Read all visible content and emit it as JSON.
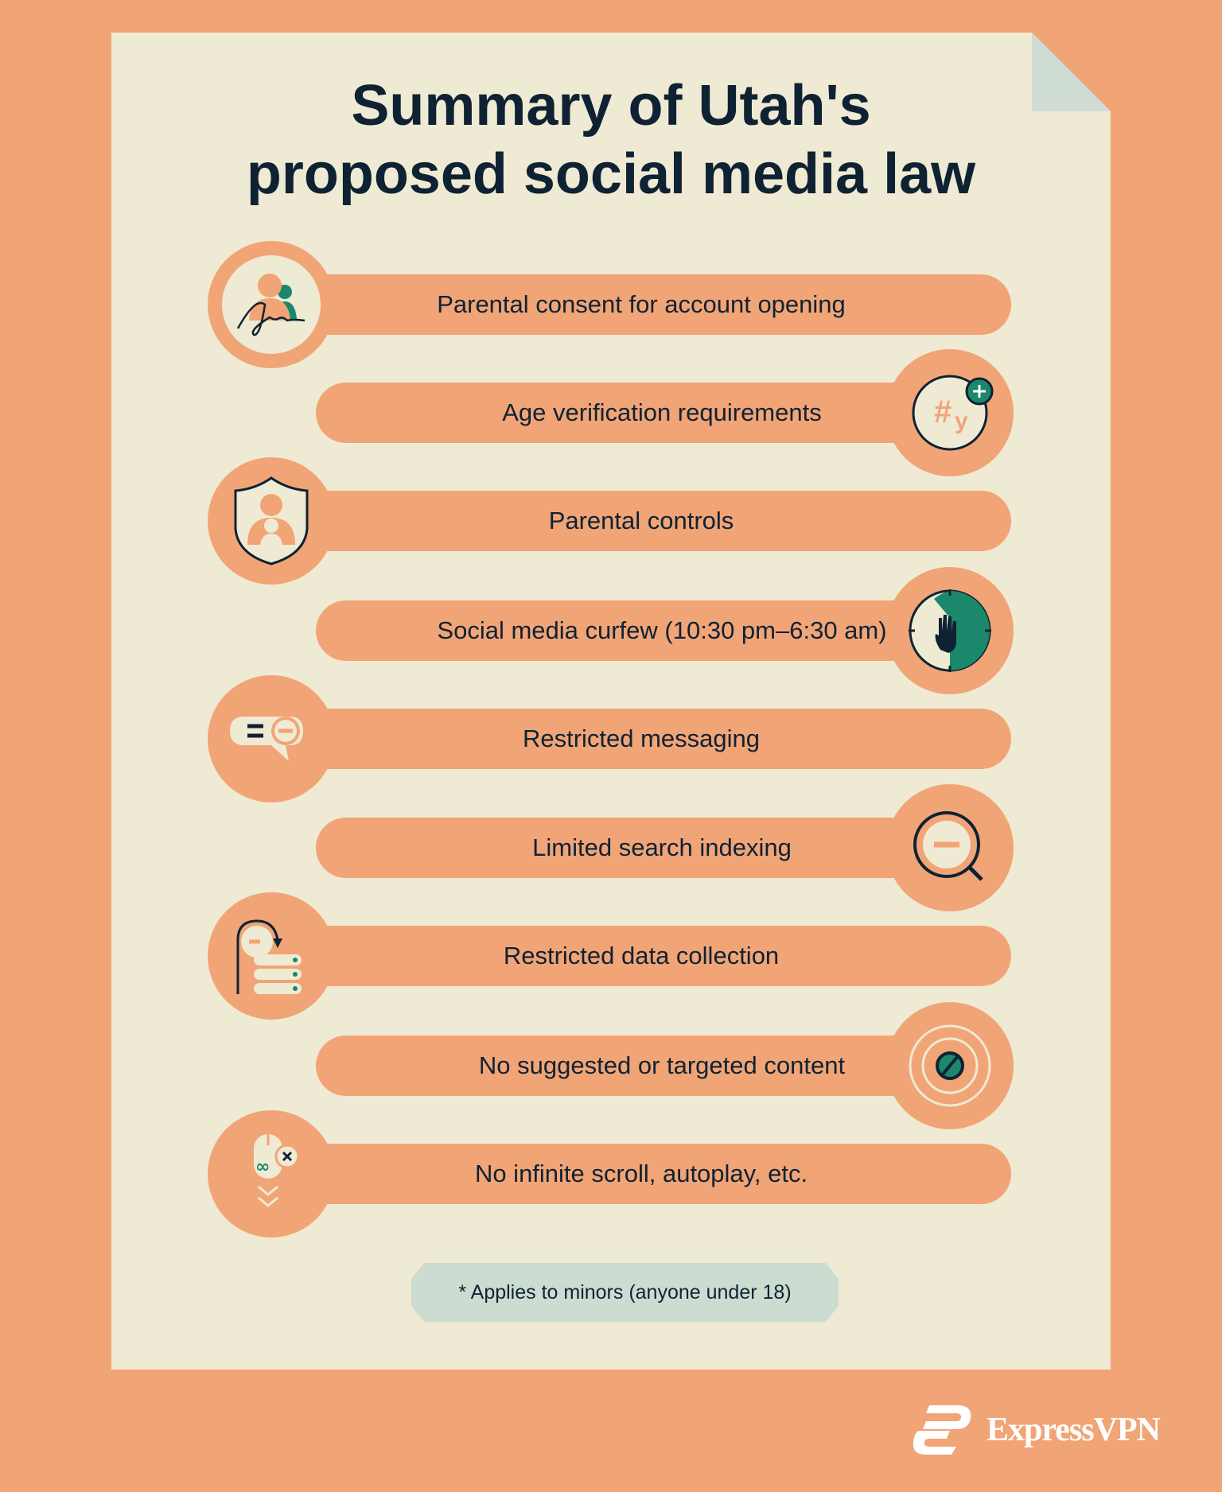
{
  "title": {
    "line1": "Summary of Utah's",
    "line2": "proposed social media law"
  },
  "items": [
    {
      "label": "Parental consent for account opening",
      "icon": "signature-parent-icon",
      "side": "left"
    },
    {
      "label": "Age verification requirements",
      "icon": "hashtag-age-plus-icon",
      "side": "right"
    },
    {
      "label": "Parental controls",
      "icon": "shield-parent-child-icon",
      "side": "left"
    },
    {
      "label": "Social media curfew (10:30 pm–6:30 am)",
      "icon": "clock-hand-stop-icon",
      "side": "right"
    },
    {
      "label": "Restricted messaging",
      "icon": "message-minus-icon",
      "side": "left"
    },
    {
      "label": "Limited search indexing",
      "icon": "search-minus-icon",
      "side": "right"
    },
    {
      "label": "Restricted data collection",
      "icon": "database-minus-icon",
      "side": "left"
    },
    {
      "label": "No suggested or targeted content",
      "icon": "target-blocked-icon",
      "side": "right"
    },
    {
      "label": "No infinite scroll, autoplay, etc.",
      "icon": "mouse-infinite-scroll-icon",
      "side": "left"
    }
  ],
  "footnote": "* Applies to minors (anyone under 18)",
  "brand": {
    "name": "ExpressVPN"
  },
  "colors": {
    "background": "#F1A476",
    "paper": "#EFEAD3",
    "text": "#0E2233",
    "accent_green": "#1B876B",
    "note": "#CCDCD1"
  }
}
